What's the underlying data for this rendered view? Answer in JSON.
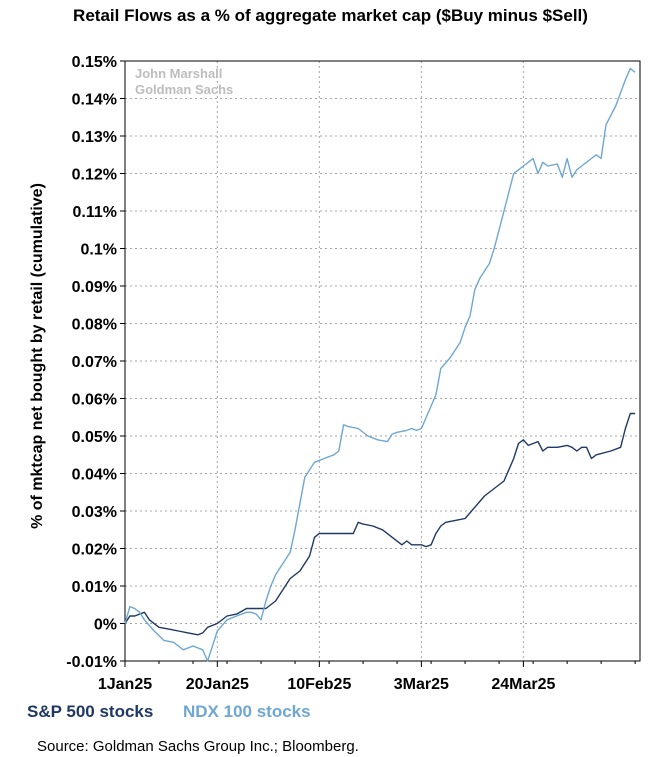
{
  "chart_data": {
    "type": "line",
    "title": "Retail Flows as a % of aggregate market cap ($Buy minus $Sell)",
    "ylabel": "% of mktcap net bought by retail (cumulative)",
    "xlabel": "",
    "ylim": [
      -0.01,
      0.15
    ],
    "yticks": [
      -0.01,
      0,
      0.01,
      0.02,
      0.03,
      0.04,
      0.05,
      0.06,
      0.07,
      0.08,
      0.09,
      0.1,
      0.11,
      0.12,
      0.13,
      0.14,
      0.15
    ],
    "ytick_labels": [
      "-0.01%",
      "0%",
      "0.01%",
      "0.02%",
      "0.03%",
      "0.04%",
      "0.05%",
      "0.06%",
      "0.07%",
      "0.08%",
      "0.09%",
      "0.1%",
      "0.11%",
      "0.12%",
      "0.13%",
      "0.14%",
      "0.15%"
    ],
    "xlim": [
      "2025-01-01",
      "2025-04-17"
    ],
    "xticks": [
      "2025-01-01",
      "2025-01-20",
      "2025-02-10",
      "2025-03-03",
      "2025-03-24"
    ],
    "xtick_labels": [
      "1Jan25",
      "20Jan25",
      "10Feb25",
      "3Mar25",
      "24Mar25"
    ],
    "grid": true,
    "legend_position": "bottom-left",
    "annotations": [
      "John Marshall",
      "Goldman Sachs"
    ],
    "source": "Source: Goldman Sachs Group Inc.; Bloomberg.",
    "series": [
      {
        "name": "S&P 500 stocks",
        "color": "#1f3864",
        "points": [
          [
            "2025-01-01",
            0.0
          ],
          [
            "2025-01-02",
            0.002
          ],
          [
            "2025-01-03",
            0.002
          ],
          [
            "2025-01-04",
            0.0025
          ],
          [
            "2025-01-05",
            0.003
          ],
          [
            "2025-01-06",
            0.001
          ],
          [
            "2025-01-08",
            -0.001
          ],
          [
            "2025-01-10",
            -0.0015
          ],
          [
            "2025-01-12",
            -0.002
          ],
          [
            "2025-01-14",
            -0.0025
          ],
          [
            "2025-01-16",
            -0.003
          ],
          [
            "2025-01-17",
            -0.0025
          ],
          [
            "2025-01-18",
            -0.001
          ],
          [
            "2025-01-20",
            0.0
          ],
          [
            "2025-01-22",
            0.002
          ],
          [
            "2025-01-24",
            0.0025
          ],
          [
            "2025-01-26",
            0.004
          ],
          [
            "2025-01-28",
            0.004
          ],
          [
            "2025-01-30",
            0.004
          ],
          [
            "2025-02-01",
            0.006
          ],
          [
            "2025-02-03",
            0.01
          ],
          [
            "2025-02-04",
            0.012
          ],
          [
            "2025-02-06",
            0.014
          ],
          [
            "2025-02-08",
            0.018
          ],
          [
            "2025-02-09",
            0.023
          ],
          [
            "2025-02-10",
            0.024
          ],
          [
            "2025-02-12",
            0.024
          ],
          [
            "2025-02-14",
            0.024
          ],
          [
            "2025-02-17",
            0.024
          ],
          [
            "2025-02-18",
            0.027
          ],
          [
            "2025-02-19",
            0.0265
          ],
          [
            "2025-02-21",
            0.026
          ],
          [
            "2025-02-23",
            0.025
          ],
          [
            "2025-02-25",
            0.023
          ],
          [
            "2025-02-27",
            0.021
          ],
          [
            "2025-02-28",
            0.022
          ],
          [
            "2025-03-01",
            0.021
          ],
          [
            "2025-03-03",
            0.021
          ],
          [
            "2025-03-04",
            0.0205
          ],
          [
            "2025-03-05",
            0.021
          ],
          [
            "2025-03-06",
            0.024
          ],
          [
            "2025-03-07",
            0.026
          ],
          [
            "2025-03-08",
            0.027
          ],
          [
            "2025-03-10",
            0.0275
          ],
          [
            "2025-03-12",
            0.028
          ],
          [
            "2025-03-14",
            0.031
          ],
          [
            "2025-03-16",
            0.034
          ],
          [
            "2025-03-18",
            0.036
          ],
          [
            "2025-03-20",
            0.038
          ],
          [
            "2025-03-22",
            0.044
          ],
          [
            "2025-03-23",
            0.048
          ],
          [
            "2025-03-24",
            0.049
          ],
          [
            "2025-03-25",
            0.0475
          ],
          [
            "2025-03-26",
            0.048
          ],
          [
            "2025-03-27",
            0.0485
          ],
          [
            "2025-03-28",
            0.046
          ],
          [
            "2025-03-29",
            0.047
          ],
          [
            "2025-03-31",
            0.047
          ],
          [
            "2025-04-02",
            0.0475
          ],
          [
            "2025-04-03",
            0.047
          ],
          [
            "2025-04-04",
            0.046
          ],
          [
            "2025-04-05",
            0.047
          ],
          [
            "2025-04-06",
            0.047
          ],
          [
            "2025-04-07",
            0.044
          ],
          [
            "2025-04-08",
            0.045
          ],
          [
            "2025-04-11",
            0.046
          ],
          [
            "2025-04-13",
            0.047
          ],
          [
            "2025-04-14",
            0.052
          ],
          [
            "2025-04-15",
            0.056
          ],
          [
            "2025-04-16",
            0.056
          ]
        ]
      },
      {
        "name": "NDX 100 stocks",
        "color": "#6ea7d2",
        "points": [
          [
            "2025-01-01",
            0.0
          ],
          [
            "2025-01-02",
            0.0045
          ],
          [
            "2025-01-03",
            0.004
          ],
          [
            "2025-01-04",
            0.003
          ],
          [
            "2025-01-05",
            0.001
          ],
          [
            "2025-01-07",
            -0.002
          ],
          [
            "2025-01-09",
            -0.0045
          ],
          [
            "2025-01-11",
            -0.005
          ],
          [
            "2025-01-13",
            -0.007
          ],
          [
            "2025-01-15",
            -0.006
          ],
          [
            "2025-01-17",
            -0.007
          ],
          [
            "2025-01-18",
            -0.01
          ],
          [
            "2025-01-19",
            -0.006
          ],
          [
            "2025-01-20",
            -0.002
          ],
          [
            "2025-01-22",
            0.001
          ],
          [
            "2025-01-24",
            0.002
          ],
          [
            "2025-01-26",
            0.003
          ],
          [
            "2025-01-27",
            0.003
          ],
          [
            "2025-01-28",
            0.0025
          ],
          [
            "2025-01-29",
            0.001
          ],
          [
            "2025-01-30",
            0.006
          ],
          [
            "2025-01-31",
            0.01
          ],
          [
            "2025-02-01",
            0.013
          ],
          [
            "2025-02-03",
            0.017
          ],
          [
            "2025-02-04",
            0.019
          ],
          [
            "2025-02-05",
            0.025
          ],
          [
            "2025-02-06",
            0.032
          ],
          [
            "2025-02-07",
            0.039
          ],
          [
            "2025-02-09",
            0.043
          ],
          [
            "2025-02-11",
            0.044
          ],
          [
            "2025-02-13",
            0.045
          ],
          [
            "2025-02-14",
            0.046
          ],
          [
            "2025-02-15",
            0.053
          ],
          [
            "2025-02-16",
            0.0525
          ],
          [
            "2025-02-18",
            0.052
          ],
          [
            "2025-02-20",
            0.05
          ],
          [
            "2025-02-22",
            0.049
          ],
          [
            "2025-02-24",
            0.0485
          ],
          [
            "2025-02-25",
            0.0505
          ],
          [
            "2025-02-26",
            0.051
          ],
          [
            "2025-02-28",
            0.0515
          ],
          [
            "2025-03-01",
            0.052
          ],
          [
            "2025-03-02",
            0.0515
          ],
          [
            "2025-03-03",
            0.052
          ],
          [
            "2025-03-05",
            0.058
          ],
          [
            "2025-03-06",
            0.061
          ],
          [
            "2025-03-07",
            0.068
          ],
          [
            "2025-03-09",
            0.071
          ],
          [
            "2025-03-10",
            0.073
          ],
          [
            "2025-03-11",
            0.075
          ],
          [
            "2025-03-12",
            0.079
          ],
          [
            "2025-03-13",
            0.082
          ],
          [
            "2025-03-14",
            0.089
          ],
          [
            "2025-03-15",
            0.092
          ],
          [
            "2025-03-17",
            0.096
          ],
          [
            "2025-03-18",
            0.1
          ],
          [
            "2025-03-19",
            0.105
          ],
          [
            "2025-03-20",
            0.11
          ],
          [
            "2025-03-22",
            0.12
          ],
          [
            "2025-03-23",
            0.121
          ],
          [
            "2025-03-24",
            0.122
          ],
          [
            "2025-03-25",
            0.123
          ],
          [
            "2025-03-26",
            0.124
          ],
          [
            "2025-03-27",
            0.12
          ],
          [
            "2025-03-28",
            0.123
          ],
          [
            "2025-03-29",
            0.122
          ],
          [
            "2025-03-31",
            0.1225
          ],
          [
            "2025-04-01",
            0.119
          ],
          [
            "2025-04-02",
            0.124
          ],
          [
            "2025-04-03",
            0.119
          ],
          [
            "2025-04-04",
            0.121
          ],
          [
            "2025-04-05",
            0.122
          ],
          [
            "2025-04-07",
            0.124
          ],
          [
            "2025-04-08",
            0.125
          ],
          [
            "2025-04-09",
            0.124
          ],
          [
            "2025-04-10",
            0.133
          ],
          [
            "2025-04-12",
            0.138
          ],
          [
            "2025-04-14",
            0.145
          ],
          [
            "2025-04-15",
            0.148
          ],
          [
            "2025-04-16",
            0.147
          ]
        ]
      }
    ]
  }
}
